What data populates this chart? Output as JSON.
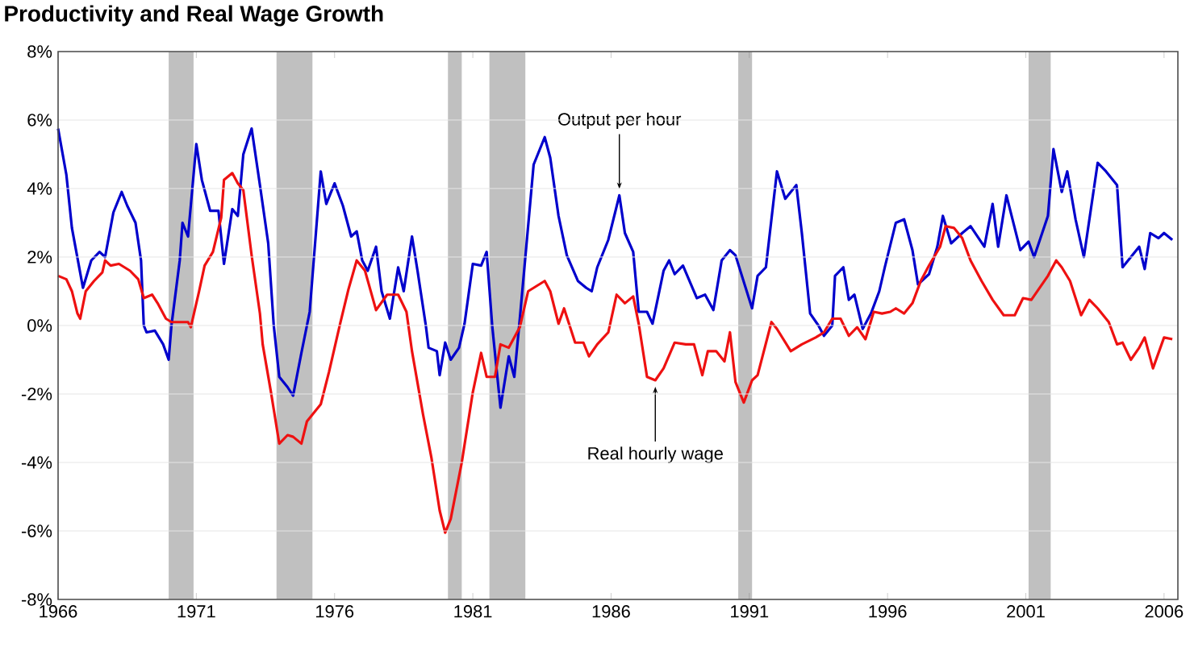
{
  "chart_data": {
    "type": "line",
    "title": "Productivity and Real Wage Growth",
    "xlim": [
      1966,
      2006.5
    ],
    "xticks": [
      1966,
      1971,
      1976,
      1981,
      1986,
      1991,
      1996,
      2001,
      2006
    ],
    "ylim": [
      -8,
      8
    ],
    "yticks": [
      {
        "value": -8,
        "label": "-8%"
      },
      {
        "value": -6,
        "label": "-6%"
      },
      {
        "value": -4,
        "label": "-4%"
      },
      {
        "value": -2,
        "label": "-2%"
      },
      {
        "value": 0,
        "label": "0%"
      },
      {
        "value": 2,
        "label": "2%"
      },
      {
        "value": 4,
        "label": "4%"
      },
      {
        "value": 6,
        "label": "6%"
      },
      {
        "value": 8,
        "label": "8%"
      }
    ],
    "grid": "y",
    "bands": [
      {
        "axis": "x",
        "from": 1970.0,
        "to": 1970.9,
        "color": "#c0c0c0"
      },
      {
        "axis": "x",
        "from": 1973.9,
        "to": 1975.2,
        "color": "#c0c0c0"
      },
      {
        "axis": "x",
        "from": 1980.1,
        "to": 1980.6,
        "color": "#c0c0c0"
      },
      {
        "axis": "x",
        "from": 1981.6,
        "to": 1982.9,
        "color": "#c0c0c0"
      },
      {
        "axis": "x",
        "from": 1990.6,
        "to": 1991.1,
        "color": "#c0c0c0"
      },
      {
        "axis": "x",
        "from": 2001.1,
        "to": 2001.9,
        "color": "#c0c0c0"
      }
    ],
    "annotations": [
      {
        "text": "Output per hour",
        "x": 1986.3,
        "y": 3.8
      },
      {
        "text": "Real hourly wage",
        "x": 1987.6,
        "y": -1.6
      }
    ],
    "series": [
      {
        "color": "#0000cc",
        "x": [
          1966.0,
          1966.3,
          1966.5,
          1966.9,
          1967.2,
          1967.5,
          1967.7,
          1968.0,
          1968.3,
          1968.5,
          1968.8,
          1969.0,
          1969.1,
          1969.2,
          1969.5,
          1969.8,
          1970.0,
          1970.1,
          1970.4,
          1970.5,
          1970.7,
          1971.0,
          1971.2,
          1971.5,
          1971.8,
          1972.0,
          1972.3,
          1972.5,
          1972.7,
          1973.0,
          1973.3,
          1973.6,
          1973.8,
          1974.0,
          1974.3,
          1974.5,
          1974.8,
          1975.1,
          1975.5,
          1975.7,
          1976.0,
          1976.3,
          1976.6,
          1976.8,
          1977.0,
          1977.2,
          1977.5,
          1977.7,
          1978.0,
          1978.3,
          1978.5,
          1978.8,
          1979.0,
          1979.3,
          1979.4,
          1979.7,
          1979.8,
          1980.0,
          1980.2,
          1980.5,
          1980.7,
          1981.0,
          1981.3,
          1981.5,
          1981.7,
          1982.0,
          1982.3,
          1982.5,
          1982.7,
          1983.2,
          1983.6,
          1983.8,
          1984.1,
          1984.4,
          1984.8,
          1985.1,
          1985.3,
          1985.5,
          1985.9,
          1986.3,
          1986.5,
          1986.8,
          1987.0,
          1987.3,
          1987.5,
          1987.9,
          1988.1,
          1988.3,
          1988.6,
          1989.1,
          1989.4,
          1989.7,
          1990.0,
          1990.3,
          1990.5,
          1991.1,
          1991.3,
          1991.6,
          1992.0,
          1992.3,
          1992.7,
          1992.9,
          1993.2,
          1993.5,
          1993.7,
          1994.0,
          1994.1,
          1994.4,
          1994.6,
          1994.8,
          1995.1,
          1995.4,
          1995.7,
          1995.9,
          1996.3,
          1996.6,
          1996.9,
          1997.1,
          1997.5,
          1997.8,
          1998.0,
          1998.3,
          1998.7,
          1999.0,
          1999.5,
          1999.8,
          2000.0,
          2000.3,
          2000.8,
          2001.1,
          2001.3,
          2001.8,
          2002.0,
          2002.3,
          2002.5,
          2002.8,
          2003.1,
          2003.6,
          2003.9,
          2004.3,
          2004.5,
          2005.1,
          2005.3,
          2005.5,
          2005.8,
          2006.0,
          2006.3
        ],
        "values": [
          5.75,
          4.4,
          2.85,
          1.1,
          1.9,
          2.15,
          2.0,
          3.3,
          3.9,
          3.5,
          3.0,
          1.9,
          0,
          -0.2,
          -0.15,
          -0.55,
          -1.0,
          0,
          1.9,
          3.0,
          2.6,
          5.3,
          4.25,
          3.35,
          3.35,
          1.8,
          3.4,
          3.2,
          5.0,
          5.75,
          4.1,
          2.4,
          0,
          -1.5,
          -1.8,
          -2.05,
          -0.8,
          0.4,
          4.5,
          3.55,
          4.15,
          3.5,
          2.6,
          2.75,
          1.9,
          1.6,
          2.3,
          1.0,
          0.2,
          1.7,
          1.0,
          2.6,
          1.6,
          0,
          -0.65,
          -0.75,
          -1.45,
          -0.5,
          -1.0,
          -0.65,
          0.05,
          1.8,
          1.75,
          2.15,
          0,
          -2.4,
          -0.9,
          -1.5,
          0.2,
          4.7,
          5.5,
          4.9,
          3.2,
          2.05,
          1.3,
          1.1,
          1.0,
          1.7,
          2.5,
          3.8,
          2.7,
          2.15,
          0.4,
          0.4,
          0.05,
          1.6,
          1.9,
          1.5,
          1.75,
          0.8,
          0.9,
          0.45,
          1.9,
          2.2,
          2.05,
          0.5,
          1.45,
          1.7,
          4.5,
          3.7,
          4.1,
          2.7,
          0.35,
          0,
          -0.3,
          0,
          1.45,
          1.7,
          0.75,
          0.9,
          -0.1,
          0.35,
          1.0,
          1.7,
          3.0,
          3.1,
          2.2,
          1.2,
          1.5,
          2.3,
          3.2,
          2.4,
          2.7,
          2.9,
          2.3,
          3.55,
          2.3,
          3.8,
          2.2,
          2.45,
          2.0,
          3.2,
          5.15,
          3.9,
          4.5,
          3.1,
          2.0,
          4.75,
          4.5,
          4.1,
          1.7,
          2.3,
          1.65,
          2.7,
          2.55,
          2.7,
          2.5
        ]
      },
      {
        "color": "#ee1111",
        "x": [
          1966.0,
          1966.3,
          1966.5,
          1966.7,
          1966.8,
          1967.0,
          1967.3,
          1967.6,
          1967.7,
          1967.9,
          1968.2,
          1968.6,
          1968.9,
          1969.1,
          1969.4,
          1969.6,
          1969.9,
          1970.1,
          1970.7,
          1970.8,
          1971.1,
          1971.3,
          1971.6,
          1971.9,
          1972.0,
          1972.3,
          1972.5,
          1972.7,
          1973.0,
          1973.3,
          1973.4,
          1973.7,
          1974.0,
          1974.3,
          1974.5,
          1974.8,
          1975.0,
          1975.5,
          1975.8,
          1976.2,
          1976.5,
          1976.8,
          1977.1,
          1977.5,
          1977.9,
          1978.3,
          1978.6,
          1978.8,
          1979.2,
          1979.5,
          1979.8,
          1980.0,
          1980.2,
          1980.6,
          1981.0,
          1981.3,
          1981.5,
          1981.8,
          1982.0,
          1982.3,
          1982.7,
          1983.0,
          1983.6,
          1983.8,
          1984.1,
          1984.3,
          1984.7,
          1985.0,
          1985.2,
          1985.5,
          1985.9,
          1986.2,
          1986.5,
          1986.8,
          1987.0,
          1987.3,
          1987.6,
          1987.9,
          1988.3,
          1988.7,
          1989.0,
          1989.3,
          1989.5,
          1989.8,
          1990.1,
          1990.3,
          1990.5,
          1990.8,
          1991.1,
          1991.3,
          1991.8,
          1992.0,
          1992.5,
          1992.9,
          1993.4,
          1993.7,
          1994.0,
          1994.3,
          1994.6,
          1994.9,
          1995.2,
          1995.5,
          1995.8,
          1996.1,
          1996.3,
          1996.6,
          1996.9,
          1997.2,
          1997.5,
          1997.9,
          1998.1,
          1998.4,
          1998.7,
          1999.0,
          1999.4,
          1999.8,
          2000.2,
          2000.6,
          2000.9,
          2001.2,
          2001.8,
          2002.1,
          2002.3,
          2002.6,
          2003.0,
          2003.3,
          2003.6,
          2004.0,
          2004.3,
          2004.5,
          2004.8,
          2005.1,
          2005.3,
          2005.6,
          2006.0,
          2006.3
        ],
        "values": [
          1.45,
          1.35,
          1.0,
          0.35,
          0.2,
          1.0,
          1.3,
          1.55,
          1.9,
          1.75,
          1.8,
          1.6,
          1.35,
          0.8,
          0.9,
          0.65,
          0.2,
          0.1,
          0.1,
          -0.05,
          1.0,
          1.75,
          2.15,
          3.15,
          4.25,
          4.45,
          4.15,
          3.95,
          2.05,
          0.35,
          -0.55,
          -1.95,
          -3.45,
          -3.2,
          -3.25,
          -3.45,
          -2.8,
          -2.3,
          -1.35,
          0.05,
          1.05,
          1.9,
          1.6,
          0.45,
          0.9,
          0.9,
          0.4,
          -0.75,
          -2.6,
          -3.85,
          -5.4,
          -6.05,
          -5.65,
          -4.0,
          -1.95,
          -0.8,
          -1.5,
          -1.5,
          -0.55,
          -0.65,
          -0.05,
          1.0,
          1.3,
          1.0,
          0.05,
          0.5,
          -0.5,
          -0.5,
          -0.9,
          -0.55,
          -0.2,
          0.9,
          0.65,
          0.85,
          0.05,
          -1.5,
          -1.6,
          -1.25,
          -0.5,
          -0.55,
          -0.55,
          -1.45,
          -0.75,
          -0.75,
          -1.05,
          -0.2,
          -1.65,
          -2.25,
          -1.6,
          -1.45,
          0.1,
          -0.1,
          -0.75,
          -0.55,
          -0.35,
          -0.2,
          0.2,
          0.2,
          -0.3,
          -0.05,
          -0.4,
          0.4,
          0.35,
          0.4,
          0.5,
          0.35,
          0.65,
          1.3,
          1.75,
          2.3,
          2.9,
          2.85,
          2.55,
          1.9,
          1.3,
          0.75,
          0.3,
          0.3,
          0.8,
          0.75,
          1.45,
          1.9,
          1.7,
          1.3,
          0.3,
          0.75,
          0.5,
          0.1,
          -0.55,
          -0.5,
          -1.0,
          -0.65,
          -0.35,
          -1.25,
          -0.35,
          -0.4
        ]
      }
    ]
  }
}
